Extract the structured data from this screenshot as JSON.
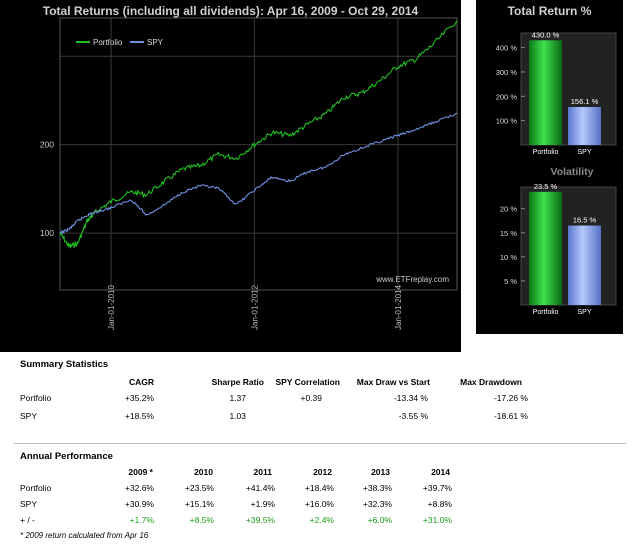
{
  "main_chart": {
    "title": "Total Returns (including all dividends): Apr 16, 2009 - Oct 29, 2014",
    "watermark": "www.ETFreplay.com",
    "legend": [
      "Portfolio",
      "SPY"
    ]
  },
  "right_panel": {
    "total_return_title": "Total Return %",
    "volatility_title": "Volatility"
  },
  "summary": {
    "title": "Summary Statistics",
    "headers": [
      "CAGR",
      "Sharpe Ratio",
      "SPY Correlation",
      "Max Draw vs Start",
      "Max Drawdown"
    ],
    "rows": [
      {
        "label": "Portfolio",
        "cagr": "+35.2%",
        "sharpe": "1.37",
        "corr": "+0.39",
        "mdvs": "-13.34 %",
        "mdd": "-17.26 %"
      },
      {
        "label": "SPY",
        "cagr": "+18.5%",
        "sharpe": "1.03",
        "corr": "",
        "mdvs": "-3.55 %",
        "mdd": "-18.61 %"
      }
    ]
  },
  "annual": {
    "title": "Annual Performance",
    "headers": [
      "2009 *",
      "2010",
      "2011",
      "2012",
      "2013",
      "2014"
    ],
    "rows": [
      {
        "label": "Portfolio",
        "values": [
          "+32.6%",
          "+23.5%",
          "+41.4%",
          "+18.4%",
          "+38.3%",
          "+39.7%"
        ]
      },
      {
        "label": "SPY",
        "values": [
          "+30.9%",
          "+15.1%",
          "+1.9%",
          "+16.0%",
          "+32.3%",
          "+8.8%"
        ]
      },
      {
        "label": "+ / -",
        "values": [
          "+1.7%",
          "+8.5%",
          "+39.5%",
          "+2.4%",
          "+6.0%",
          "+31.0%"
        ]
      }
    ],
    "footnote": "* 2009 return calculated from Apr 16"
  },
  "colors": {
    "portfolio": "#1fbf1f",
    "spy": "#6f8fdf",
    "panel_bg": "#000000",
    "grid": "#3a3a3a",
    "positive_diff": "#1a9a1a"
  },
  "chart_data": [
    {
      "type": "line",
      "title": "Total Returns (including all dividends): Apr 16, 2009 - Oct 29, 2014",
      "xlabel": "",
      "ylabel": "",
      "y_scale": "log",
      "ylim": [
        64,
        540
      ],
      "y_ticks": [
        100,
        200
      ],
      "x_tick_labels": [
        "Jan-01-2010",
        "Jan-01-2012",
        "Jan-01-2014"
      ],
      "x_range": [
        "2009-04-16",
        "2014-10-29"
      ],
      "grid": true,
      "legend_position": "top-left",
      "series": [
        {
          "name": "Portfolio",
          "x": [
            "2009-04-16",
            "2009-06-01",
            "2009-07-15",
            "2009-09-01",
            "2009-10-15",
            "2010-01-01",
            "2010-04-15",
            "2010-07-01",
            "2010-10-01",
            "2011-01-01",
            "2011-04-01",
            "2011-07-01",
            "2011-10-01",
            "2012-01-01",
            "2012-04-01",
            "2012-07-01",
            "2012-10-01",
            "2013-01-01",
            "2013-04-01",
            "2013-07-01",
            "2013-10-01",
            "2014-01-01",
            "2014-04-01",
            "2014-07-01",
            "2014-10-29"
          ],
          "y": [
            100,
            90,
            92,
            110,
            118,
            128,
            138,
            135,
            150,
            165,
            170,
            185,
            180,
            200,
            220,
            215,
            235,
            255,
            290,
            300,
            330,
            370,
            390,
            440,
            530
          ]
        },
        {
          "name": "SPY",
          "x": [
            "2009-04-16",
            "2009-06-01",
            "2009-07-15",
            "2009-09-01",
            "2009-10-15",
            "2010-01-01",
            "2010-04-15",
            "2010-07-01",
            "2010-10-01",
            "2011-01-01",
            "2011-04-01",
            "2011-07-01",
            "2011-10-01",
            "2012-01-01",
            "2012-04-01",
            "2012-07-01",
            "2012-10-01",
            "2013-01-01",
            "2013-04-01",
            "2013-07-01",
            "2013-10-01",
            "2014-01-01",
            "2014-04-01",
            "2014-07-01",
            "2014-10-29"
          ],
          "y": [
            100,
            103,
            110,
            115,
            118,
            122,
            130,
            115,
            125,
            138,
            145,
            142,
            125,
            140,
            155,
            150,
            162,
            168,
            185,
            195,
            205,
            215,
            225,
            238,
            256
          ]
        }
      ]
    },
    {
      "type": "bar",
      "title": "Total Return %",
      "categories": [
        "Portfolio",
        "SPY"
      ],
      "values": [
        430.0,
        156.1
      ],
      "value_labels": [
        "430.0 %",
        "156.1 %"
      ],
      "y_ticks": [
        "100 %",
        "200 %",
        "300 %",
        "400 %"
      ],
      "ylim": [
        0,
        460
      ]
    },
    {
      "type": "bar",
      "title": "Volatility",
      "categories": [
        "Portfolio",
        "SPY"
      ],
      "values": [
        23.5,
        16.5
      ],
      "value_labels": [
        "23.5 %",
        "16.5 %"
      ],
      "y_ticks": [
        "5 %",
        "10 %",
        "15 %",
        "20 %"
      ],
      "ylim": [
        0,
        24.5
      ]
    }
  ]
}
